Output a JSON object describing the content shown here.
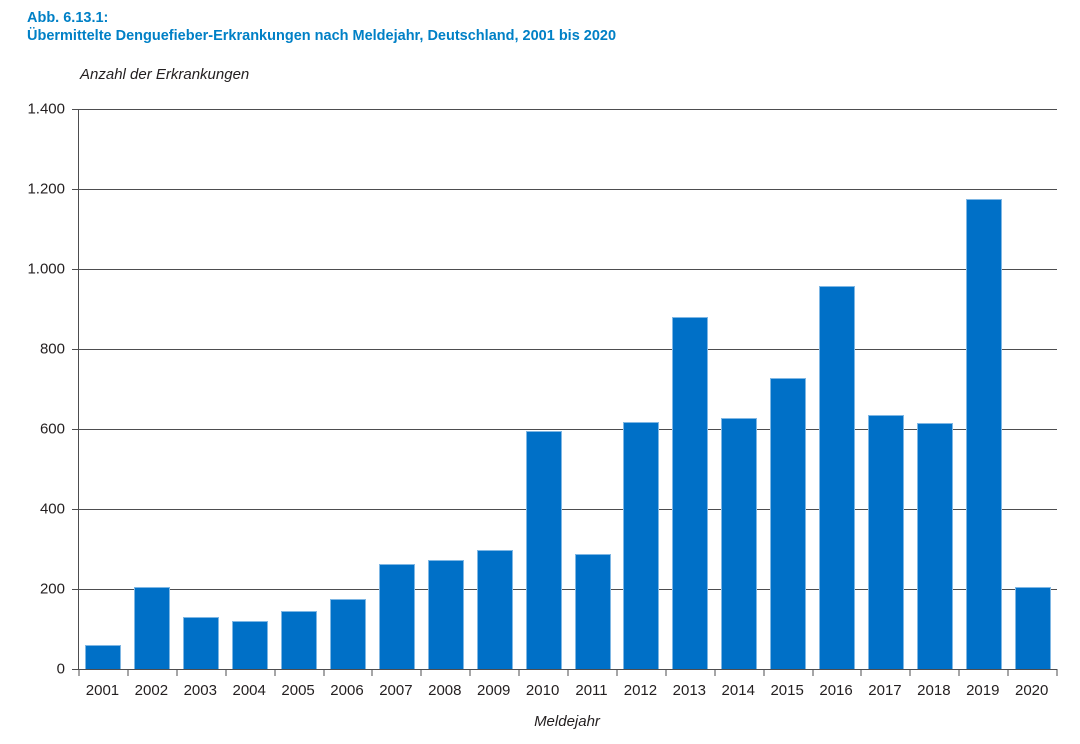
{
  "figure": {
    "label": "Abb. 6.13.1:",
    "title": "Übermittelte Denguefieber-Erkrankungen nach Meldejahr, Deutschland, 2001 bis 2020"
  },
  "chart_data": {
    "type": "bar",
    "figure_label": "Abb. 6.13.1:",
    "title": "Übermittelte Denguefieber-Erkrankungen nach Meldejahr, Deutschland, 2001 bis 2020",
    "xlabel": "Meldejahr",
    "ylabel": "Anzahl der Erkrankungen",
    "categories": [
      "2001",
      "2002",
      "2003",
      "2004",
      "2005",
      "2006",
      "2007",
      "2008",
      "2009",
      "2010",
      "2011",
      "2012",
      "2013",
      "2014",
      "2015",
      "2016",
      "2017",
      "2018",
      "2019",
      "2020"
    ],
    "values": [
      60,
      205,
      130,
      120,
      145,
      175,
      262,
      273,
      297,
      595,
      288,
      617,
      880,
      627,
      727,
      958,
      636,
      614,
      1176,
      205
    ],
    "ylim": [
      0,
      1400
    ],
    "yticks": [
      0,
      200,
      400,
      600,
      800,
      1000,
      1200,
      1400
    ],
    "ytick_labels": [
      "0",
      "200",
      "400",
      "600",
      "800",
      "1.000",
      "1.200",
      "1.400"
    ],
    "grid": "horizontal",
    "legend_position": "none",
    "colors": {
      "bar_fill": "#0070c7",
      "bar_edge": "#7fb7e4",
      "grid": "#4d4d4f",
      "title": "#0080c6",
      "text": "#231f20"
    }
  }
}
